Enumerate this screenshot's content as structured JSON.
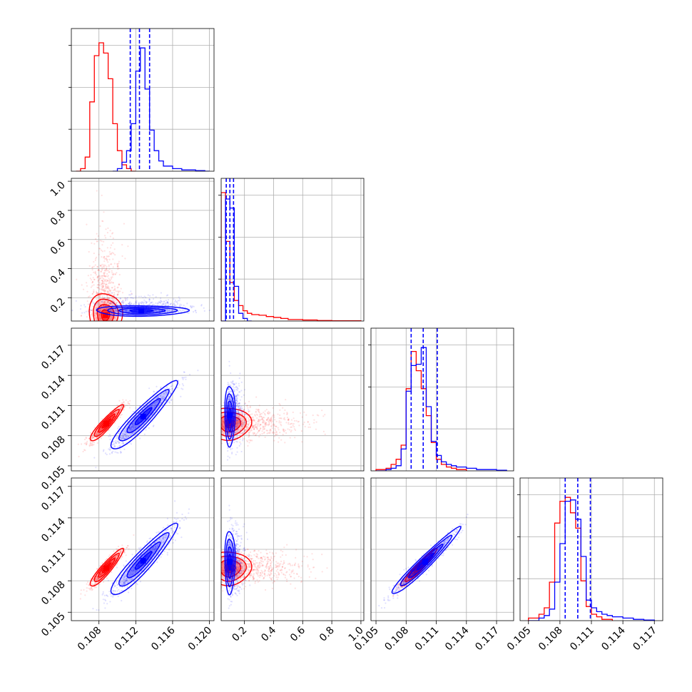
{
  "chart_data": {
    "type": "corner",
    "figure_kind": "corner-plot",
    "colors": {
      "series_a": "#ff0000",
      "series_b": "#0000ff",
      "grid": "#b0b0b0"
    },
    "series": [
      {
        "color": "#ff0000"
      },
      {
        "color": "#0000ff"
      }
    ],
    "parameters": [
      {
        "range": [
          0.105,
          0.1205
        ],
        "ticks": [
          0.108,
          0.112,
          0.116,
          0.12
        ],
        "tick_labels": [
          "0.108",
          "0.112",
          "0.116",
          "0.120"
        ]
      },
      {
        "range": [
          0.04,
          1.02
        ],
        "ticks": [
          0.2,
          0.4,
          0.6,
          0.8,
          1.0
        ],
        "tick_labels": [
          "0.2",
          "0.4",
          "0.6",
          "0.8",
          "1.0"
        ]
      },
      {
        "range": [
          0.1045,
          0.1187
        ],
        "ticks": [
          0.105,
          0.108,
          0.111,
          0.114,
          0.117
        ],
        "tick_labels": [
          "0.105",
          "0.108",
          "0.111",
          "0.114",
          "0.117"
        ]
      },
      {
        "range": [
          0.1042,
          0.1178
        ],
        "ticks": [
          0.105,
          0.108,
          0.111,
          0.114,
          0.117
        ],
        "tick_labels": [
          "0.105",
          "0.108",
          "0.111",
          "0.114",
          "0.117"
        ]
      }
    ],
    "histograms": [
      {
        "param": 0,
        "ymax": 1.0,
        "red": {
          "edges": [
            0.1055,
            0.106,
            0.1065,
            0.107,
            0.1075,
            0.108,
            0.1085,
            0.109,
            0.1095,
            0.11,
            0.1105,
            0.111,
            0.1115,
            0.112
          ],
          "heights": [
            0.0,
            0.02,
            0.11,
            0.54,
            0.9,
            1.0,
            0.92,
            0.72,
            0.37,
            0.16,
            0.05,
            0.02,
            0.0
          ]
        },
        "blue": {
          "edges": [
            0.1095,
            0.11,
            0.1105,
            0.111,
            0.1115,
            0.112,
            0.1125,
            0.113,
            0.1135,
            0.114,
            0.1145,
            0.115,
            0.1155,
            0.116,
            0.1165,
            0.117,
            0.1175,
            0.118,
            0.1185,
            0.119,
            0.1195,
            0.12
          ],
          "heights": [
            0.0,
            0.02,
            0.07,
            0.16,
            0.37,
            0.78,
            0.96,
            0.64,
            0.32,
            0.16,
            0.08,
            0.04,
            0.04,
            0.02,
            0.02,
            0.01,
            0.01,
            0.01,
            0.005,
            0.005,
            0.0
          ]
        },
        "quantiles": [
          0.1114,
          0.1124,
          0.1135
        ]
      },
      {
        "param": 1,
        "ymax": 1.0,
        "red": {
          "edges": [
            0.04,
            0.07,
            0.1,
            0.13,
            0.16,
            0.19,
            0.22,
            0.25,
            0.3,
            0.35,
            0.4,
            0.45,
            0.5,
            0.6,
            0.7,
            0.8,
            1.0
          ],
          "heights": [
            1.0,
            0.62,
            0.3,
            0.16,
            0.12,
            0.08,
            0.06,
            0.05,
            0.045,
            0.035,
            0.028,
            0.02,
            0.012,
            0.008,
            0.004,
            0.002
          ]
        },
        "blue": {
          "edges": [
            0.04,
            0.07,
            0.1,
            0.13,
            0.16,
            0.19,
            0.22,
            0.25
          ],
          "heights": [
            0.0,
            0.95,
            0.88,
            0.27,
            0.06,
            0.02,
            0.0
          ]
        },
        "quantiles": [
          0.075,
          0.1,
          0.125
        ]
      },
      {
        "param": 2,
        "ymax": 1.0,
        "red": {
          "edges": [
            0.105,
            0.106,
            0.1065,
            0.107,
            0.1075,
            0.108,
            0.1085,
            0.109,
            0.1095,
            0.11,
            0.1105,
            0.111,
            0.1115,
            0.112,
            0.1125,
            0.113,
            0.114
          ],
          "heights": [
            0.01,
            0.02,
            0.05,
            0.09,
            0.2,
            0.64,
            0.93,
            0.78,
            0.64,
            0.43,
            0.22,
            0.09,
            0.05,
            0.03,
            0.02,
            0.01
          ]
        },
        "blue": {
          "edges": [
            0.105,
            0.106,
            0.1065,
            0.107,
            0.1075,
            0.108,
            0.1085,
            0.109,
            0.1095,
            0.11,
            0.1105,
            0.111,
            0.1115,
            0.112,
            0.1125,
            0.113,
            0.114,
            0.115,
            0.116,
            0.117,
            0.118
          ],
          "heights": [
            0.0,
            0.01,
            0.02,
            0.04,
            0.17,
            0.62,
            0.82,
            0.83,
            0.96,
            0.5,
            0.23,
            0.12,
            0.07,
            0.05,
            0.04,
            0.03,
            0.02,
            0.01,
            0.01,
            0.005
          ]
        },
        "quantiles": [
          0.1085,
          0.1097,
          0.1111
        ]
      },
      {
        "param": 3,
        "ymax": 1.0,
        "red": {
          "edges": [
            0.105,
            0.106,
            0.1065,
            0.107,
            0.1075,
            0.108,
            0.1085,
            0.109,
            0.1095,
            0.11,
            0.1105,
            0.111,
            0.1115,
            0.112,
            0.113
          ],
          "heights": [
            0.02,
            0.05,
            0.1,
            0.3,
            0.76,
            0.93,
            0.96,
            0.84,
            0.72,
            0.31,
            0.11,
            0.05,
            0.03,
            0.01
          ]
        },
        "blue": {
          "edges": [
            0.105,
            0.106,
            0.1065,
            0.107,
            0.1075,
            0.108,
            0.1085,
            0.109,
            0.1095,
            0.11,
            0.1105,
            0.111,
            0.1115,
            0.112,
            0.1125,
            0.113,
            0.114,
            0.115,
            0.116,
            0.117
          ],
          "heights": [
            0.0,
            0.02,
            0.04,
            0.09,
            0.3,
            0.6,
            0.93,
            0.94,
            0.79,
            0.5,
            0.16,
            0.1,
            0.07,
            0.05,
            0.04,
            0.03,
            0.02,
            0.01,
            0.005
          ]
        },
        "quantiles": [
          0.1085,
          0.1097,
          0.1109
        ]
      }
    ],
    "scatter_panels": [
      {
        "x": 0,
        "y": 1,
        "red": {
          "center": [
            0.1087,
            0.08
          ],
          "sd": [
            0.0009,
            0.17
          ],
          "corr": 0.1,
          "levels": [
            [
              0.1087,
              0.08,
              0.0006,
              0.035
            ],
            [
              0.1088,
              0.1,
              0.0012,
              0.06
            ],
            [
              0.109,
              0.12,
              0.0017,
              0.1
            ],
            [
              0.1094,
              0.14,
              0.002,
              0.14
            ]
          ]
        },
        "blue": {
          "center": [
            0.1126,
            0.11
          ],
          "sd": [
            0.0025,
            0.04
          ],
          "corr": 0.0,
          "levels": [
            [
              0.1126,
              0.11,
              0.0006,
              0.012
            ],
            [
              0.1126,
              0.11,
              0.0013,
              0.024
            ],
            [
              0.1128,
              0.11,
              0.0018,
              0.032
            ]
          ]
        }
      },
      {
        "x": 0,
        "y": 2,
        "red": {
          "center": [
            0.1088,
            0.1092
          ],
          "sd": [
            0.0009,
            0.0009
          ],
          "corr": 0.92
        },
        "blue": {
          "center": [
            0.1128,
            0.1099
          ],
          "sd": [
            0.0018,
            0.0017
          ],
          "corr": 0.93
        }
      },
      {
        "x": 1,
        "y": 2,
        "red": {
          "center": [
            0.1,
            0.1092
          ],
          "sd": [
            0.16,
            0.0008
          ],
          "corr": -0.1
        },
        "blue": {
          "center": [
            0.1,
            0.11
          ],
          "sd": [
            0.04,
            0.0015
          ],
          "corr": 0.0
        }
      },
      {
        "x": 0,
        "y": 3,
        "red": {
          "center": [
            0.1088,
            0.1092
          ],
          "sd": [
            0.0009,
            0.0009
          ],
          "corr": 0.92
        },
        "blue": {
          "center": [
            0.1128,
            0.1099
          ],
          "sd": [
            0.0018,
            0.0017
          ],
          "corr": 0.93
        }
      },
      {
        "x": 1,
        "y": 3,
        "red": {
          "center": [
            0.1,
            0.1092
          ],
          "sd": [
            0.16,
            0.0008
          ],
          "corr": -0.1
        },
        "blue": {
          "center": [
            0.1,
            0.1098
          ],
          "sd": [
            0.04,
            0.0015
          ],
          "corr": 0.0
        }
      },
      {
        "x": 2,
        "y": 3,
        "red": {
          "center": [
            0.1092,
            0.1092
          ],
          "sd": [
            0.0009,
            0.0009
          ],
          "corr": 0.96
        },
        "blue": {
          "center": [
            0.1099,
            0.1098
          ],
          "sd": [
            0.0017,
            0.0016
          ],
          "corr": 0.97
        }
      }
    ],
    "grid": true,
    "legend": "none"
  }
}
